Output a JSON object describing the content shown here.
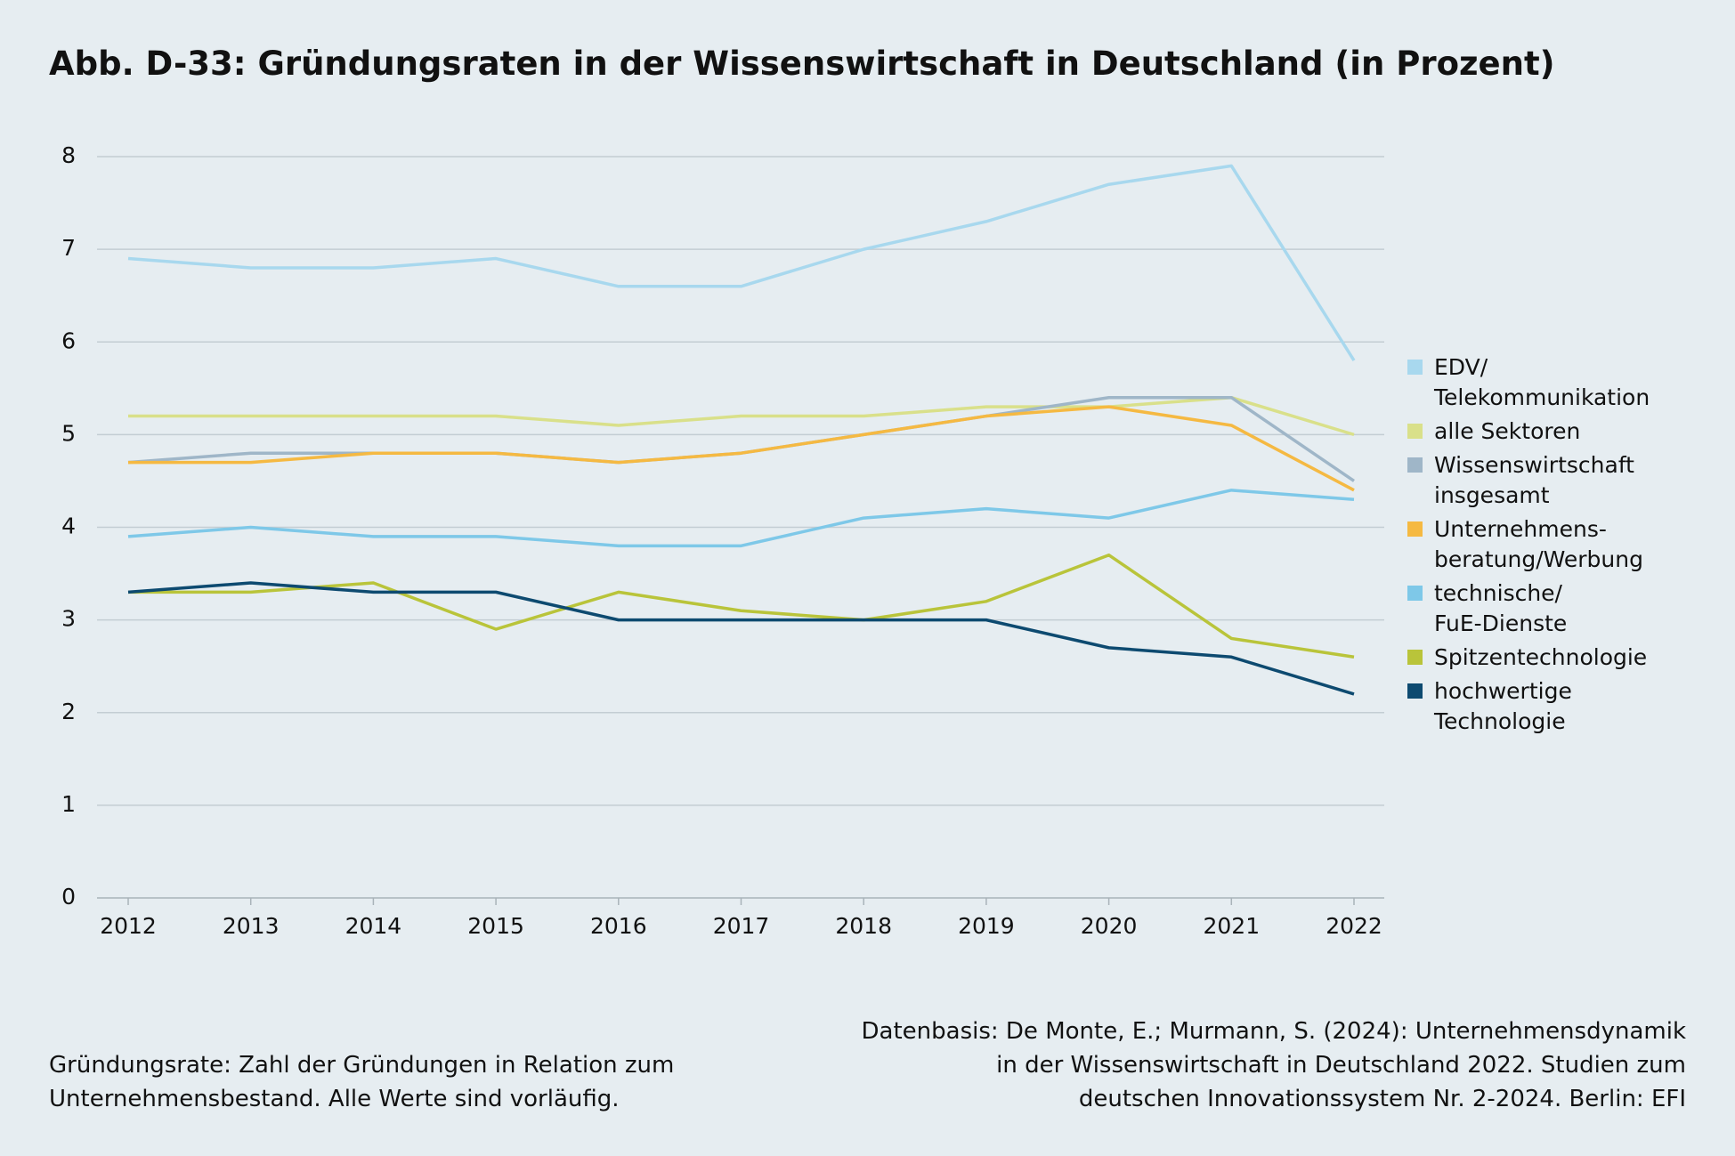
{
  "chart_data": {
    "type": "line",
    "title": "Abb. D-33: Gründungsraten in der Wissenswirtschaft in Deutschland (in Prozent)",
    "categories": [
      "2012",
      "2013",
      "2014",
      "2015",
      "2016",
      "2017",
      "2018",
      "2019",
      "2020",
      "2021",
      "2022"
    ],
    "series": [
      {
        "name": "EDV/\nTelekommunikation",
        "color": "#a8d8ee",
        "values": [
          6.9,
          6.8,
          6.8,
          6.9,
          6.6,
          6.6,
          7.0,
          7.3,
          7.7,
          7.9,
          5.8
        ]
      },
      {
        "name": "alle Sektoren",
        "color": "#d9e08a",
        "values": [
          5.2,
          5.2,
          5.2,
          5.2,
          5.1,
          5.2,
          5.2,
          5.3,
          5.3,
          5.4,
          5.0
        ]
      },
      {
        "name": "Wissenswirtschaft\ninsgesamt",
        "color": "#9fb6c8",
        "values": [
          4.7,
          4.8,
          4.8,
          4.8,
          4.7,
          4.8,
          5.0,
          5.2,
          5.4,
          5.4,
          4.5
        ]
      },
      {
        "name": "Unternehmens-\nberatung/Werbung",
        "color": "#f5b942",
        "values": [
          4.7,
          4.7,
          4.8,
          4.8,
          4.7,
          4.8,
          5.0,
          5.2,
          5.3,
          5.1,
          4.4
        ]
      },
      {
        "name": "technische/\nFuE-Dienste",
        "color": "#7ec8e8",
        "values": [
          3.9,
          4.0,
          3.9,
          3.9,
          3.8,
          3.8,
          4.1,
          4.2,
          4.1,
          4.4,
          4.3
        ]
      },
      {
        "name": "Spitzentechnologie",
        "color": "#b9c43a",
        "values": [
          3.3,
          3.3,
          3.4,
          2.9,
          3.3,
          3.1,
          3.0,
          3.2,
          3.7,
          2.8,
          2.6
        ]
      },
      {
        "name": "hochwertige\nTechnologie",
        "color": "#0d4a70",
        "values": [
          3.3,
          3.4,
          3.3,
          3.3,
          3.0,
          3.0,
          3.0,
          3.0,
          2.7,
          2.6,
          2.2
        ]
      }
    ],
    "ylim": [
      0,
      8
    ],
    "yticks": [
      0,
      1,
      2,
      3,
      4,
      5,
      6,
      7,
      8
    ],
    "grid": true,
    "legend": "right",
    "note": "Gründungsrate: Zahl der Gründungen in Relation zum\nUnternehmensbestand. Alle Werte sind vorläufig.",
    "source": "Datenbasis: De Monte, E.; Murmann, S. (2024): Unternehmensdynamik\nin der Wissenswirtschaft in Deutschland 2022. Studien zum\ndeutschen Innovationssystem Nr. 2-2024. Berlin: EFI"
  }
}
